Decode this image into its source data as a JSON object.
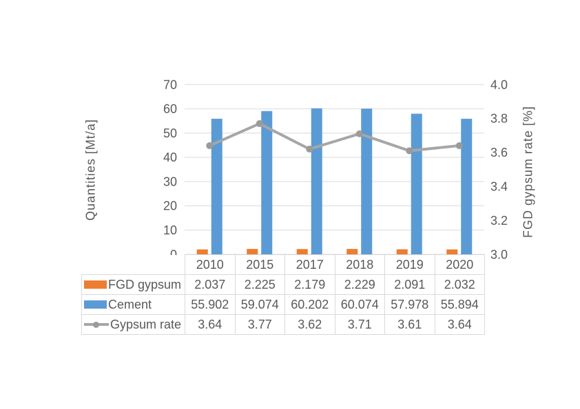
{
  "page": {
    "background": "#FFFFFF"
  },
  "colors": {
    "fgd_gypsum": "#ED7D31",
    "cement": "#5B9BD5",
    "rate_line": "#A6A6A6",
    "rate_marker": "#9B9B9B",
    "gridline": "#D9D9D9",
    "axis_text": "#595959",
    "table_border": "#D9D9D9"
  },
  "chart_data": {
    "type": "bar",
    "subtype": "combo-bar-line-dual-axis",
    "title": "",
    "categories": [
      "2010",
      "2015",
      "2017",
      "2018",
      "2019",
      "2020"
    ],
    "series": [
      {
        "name": "FGD gypsum",
        "kind": "bar",
        "axis": "left",
        "color": "#ED7D31",
        "values": [
          2.037,
          2.225,
          2.179,
          2.229,
          2.091,
          2.032
        ],
        "display_values": [
          "2.037",
          "2.225",
          "2.179",
          "2.229",
          "2.091",
          "2.032"
        ]
      },
      {
        "name": "Cement",
        "kind": "bar",
        "axis": "left",
        "color": "#5B9BD5",
        "values": [
          55.902,
          59.074,
          60.202,
          60.074,
          57.978,
          55.894
        ],
        "display_values": [
          "55.902",
          "59.074",
          "60.202",
          "60.074",
          "57.978",
          "55.894"
        ]
      },
      {
        "name": "Gypsum rate",
        "kind": "line",
        "axis": "right",
        "color": "#A6A6A6",
        "marker_color": "#9B9B9B",
        "values": [
          3.64,
          3.77,
          3.62,
          3.71,
          3.61,
          3.64
        ],
        "display_values": [
          "3.64",
          "3.77",
          "3.62",
          "3.71",
          "3.61",
          "3.64"
        ]
      }
    ],
    "left_axis": {
      "title": "Quantities [Mt/a]",
      "min": 0,
      "max": 70,
      "step": 10,
      "tick_labels": [
        "0",
        "10",
        "20",
        "30",
        "40",
        "50",
        "60",
        "70"
      ]
    },
    "right_axis": {
      "title": "FGD gypsum rate [%]",
      "min": 3.0,
      "max": 4.0,
      "step": 0.2,
      "tick_labels": [
        "3.0",
        "3.2",
        "3.4",
        "3.6",
        "3.8",
        "4.0"
      ]
    },
    "grid": true,
    "legend_position": "data-table-left-column"
  }
}
